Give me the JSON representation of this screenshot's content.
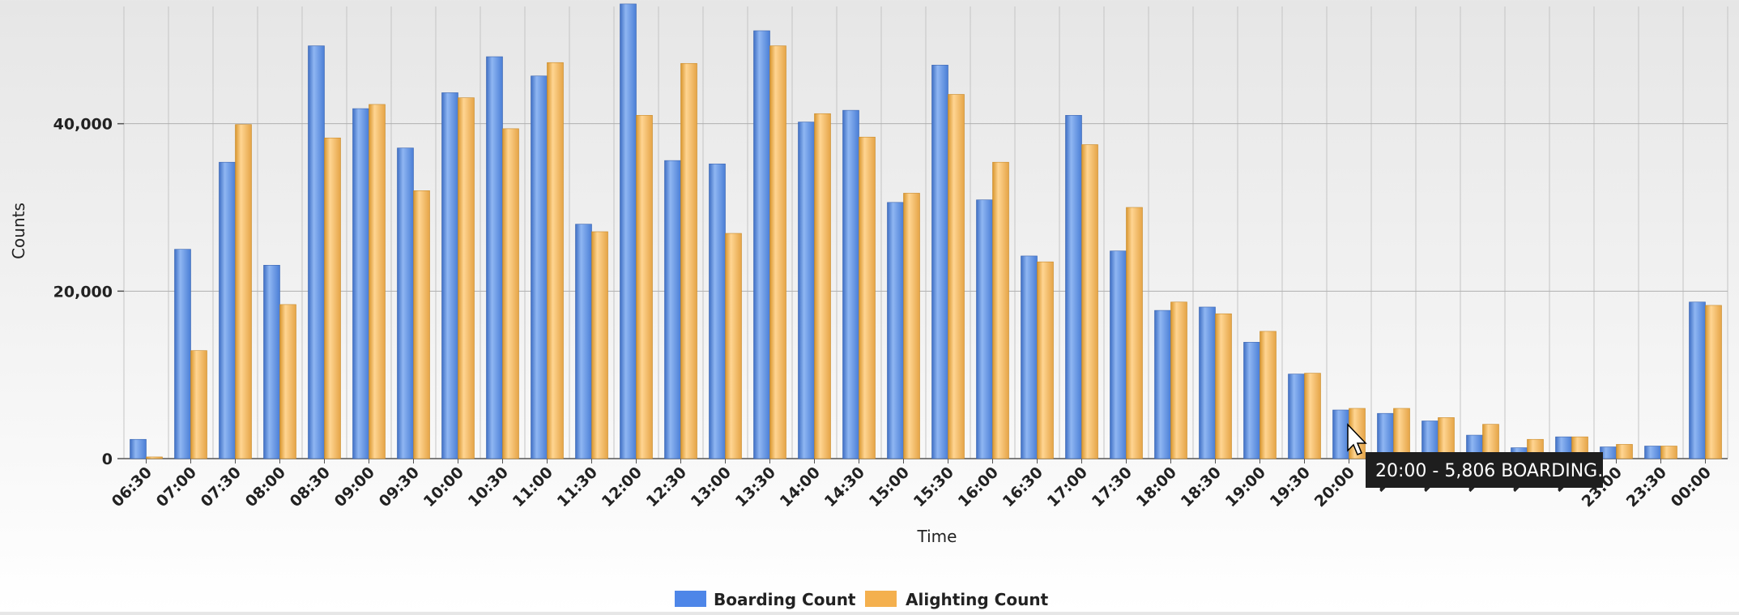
{
  "chart_data": {
    "type": "bar",
    "xlabel": "Time",
    "ylabel": "Counts",
    "ylim": [
      0,
      54000
    ],
    "yticks": [
      0,
      20000,
      40000
    ],
    "ytick_labels": [
      "0",
      "20,000",
      "40,000"
    ],
    "grid": true,
    "legend_position": "bottom-center",
    "categories": [
      "06:30",
      "07:00",
      "07:30",
      "08:00",
      "08:30",
      "09:00",
      "09:30",
      "10:00",
      "10:30",
      "11:00",
      "11:30",
      "12:00",
      "12:30",
      "13:00",
      "13:30",
      "14:00",
      "14:30",
      "15:00",
      "15:30",
      "16:00",
      "16:30",
      "17:00",
      "17:30",
      "18:00",
      "18:30",
      "19:00",
      "19:30",
      "20:00",
      "20:30",
      "21:00",
      "21:30",
      "22:00",
      "22:30",
      "23:00",
      "23:30",
      "00:00"
    ],
    "category_labels": [
      "06:30",
      "07:00",
      "07:30",
      "08:00",
      "08:30",
      "09:00",
      "09:30",
      "10:00",
      "10:30",
      "11:00",
      "11:30",
      "12:00",
      "12:30",
      "13:00",
      "13:30",
      "14:00",
      "14:30",
      "15:00",
      "15:30",
      "16:00",
      "16:30",
      "17:00",
      "17:30",
      "18:00",
      "18:30",
      "19:00",
      "19:30",
      "20:00",
      "20:",
      "21:",
      "21:",
      "22:",
      "22:",
      "23:00",
      "23:30",
      "00:00"
    ],
    "series": [
      {
        "name": "Boarding Count",
        "color": "#5b8fe0",
        "values": [
          2300,
          25000,
          35400,
          23100,
          49300,
          41800,
          37100,
          43700,
          48000,
          45700,
          28000,
          54300,
          35600,
          35200,
          51100,
          40200,
          41600,
          30600,
          47000,
          30900,
          24200,
          41000,
          24800,
          17700,
          18100,
          13900,
          10100,
          5806,
          5400,
          4500,
          2800,
          1300,
          2600,
          1400,
          1500,
          18700
        ]
      },
      {
        "name": "Alighting Count",
        "color": "#f2b45a",
        "values": [
          200,
          12900,
          39900,
          18400,
          38300,
          42300,
          32000,
          43100,
          39400,
          47300,
          27100,
          41000,
          47200,
          26900,
          49300,
          41200,
          38400,
          31700,
          43500,
          35400,
          23500,
          37500,
          30000,
          18700,
          17300,
          15200,
          10200,
          6000,
          6000,
          4900,
          4100,
          2300,
          2600,
          1700,
          1500,
          18300
        ]
      }
    ],
    "tooltip": "20:00 - 5,806 BOARDING."
  }
}
